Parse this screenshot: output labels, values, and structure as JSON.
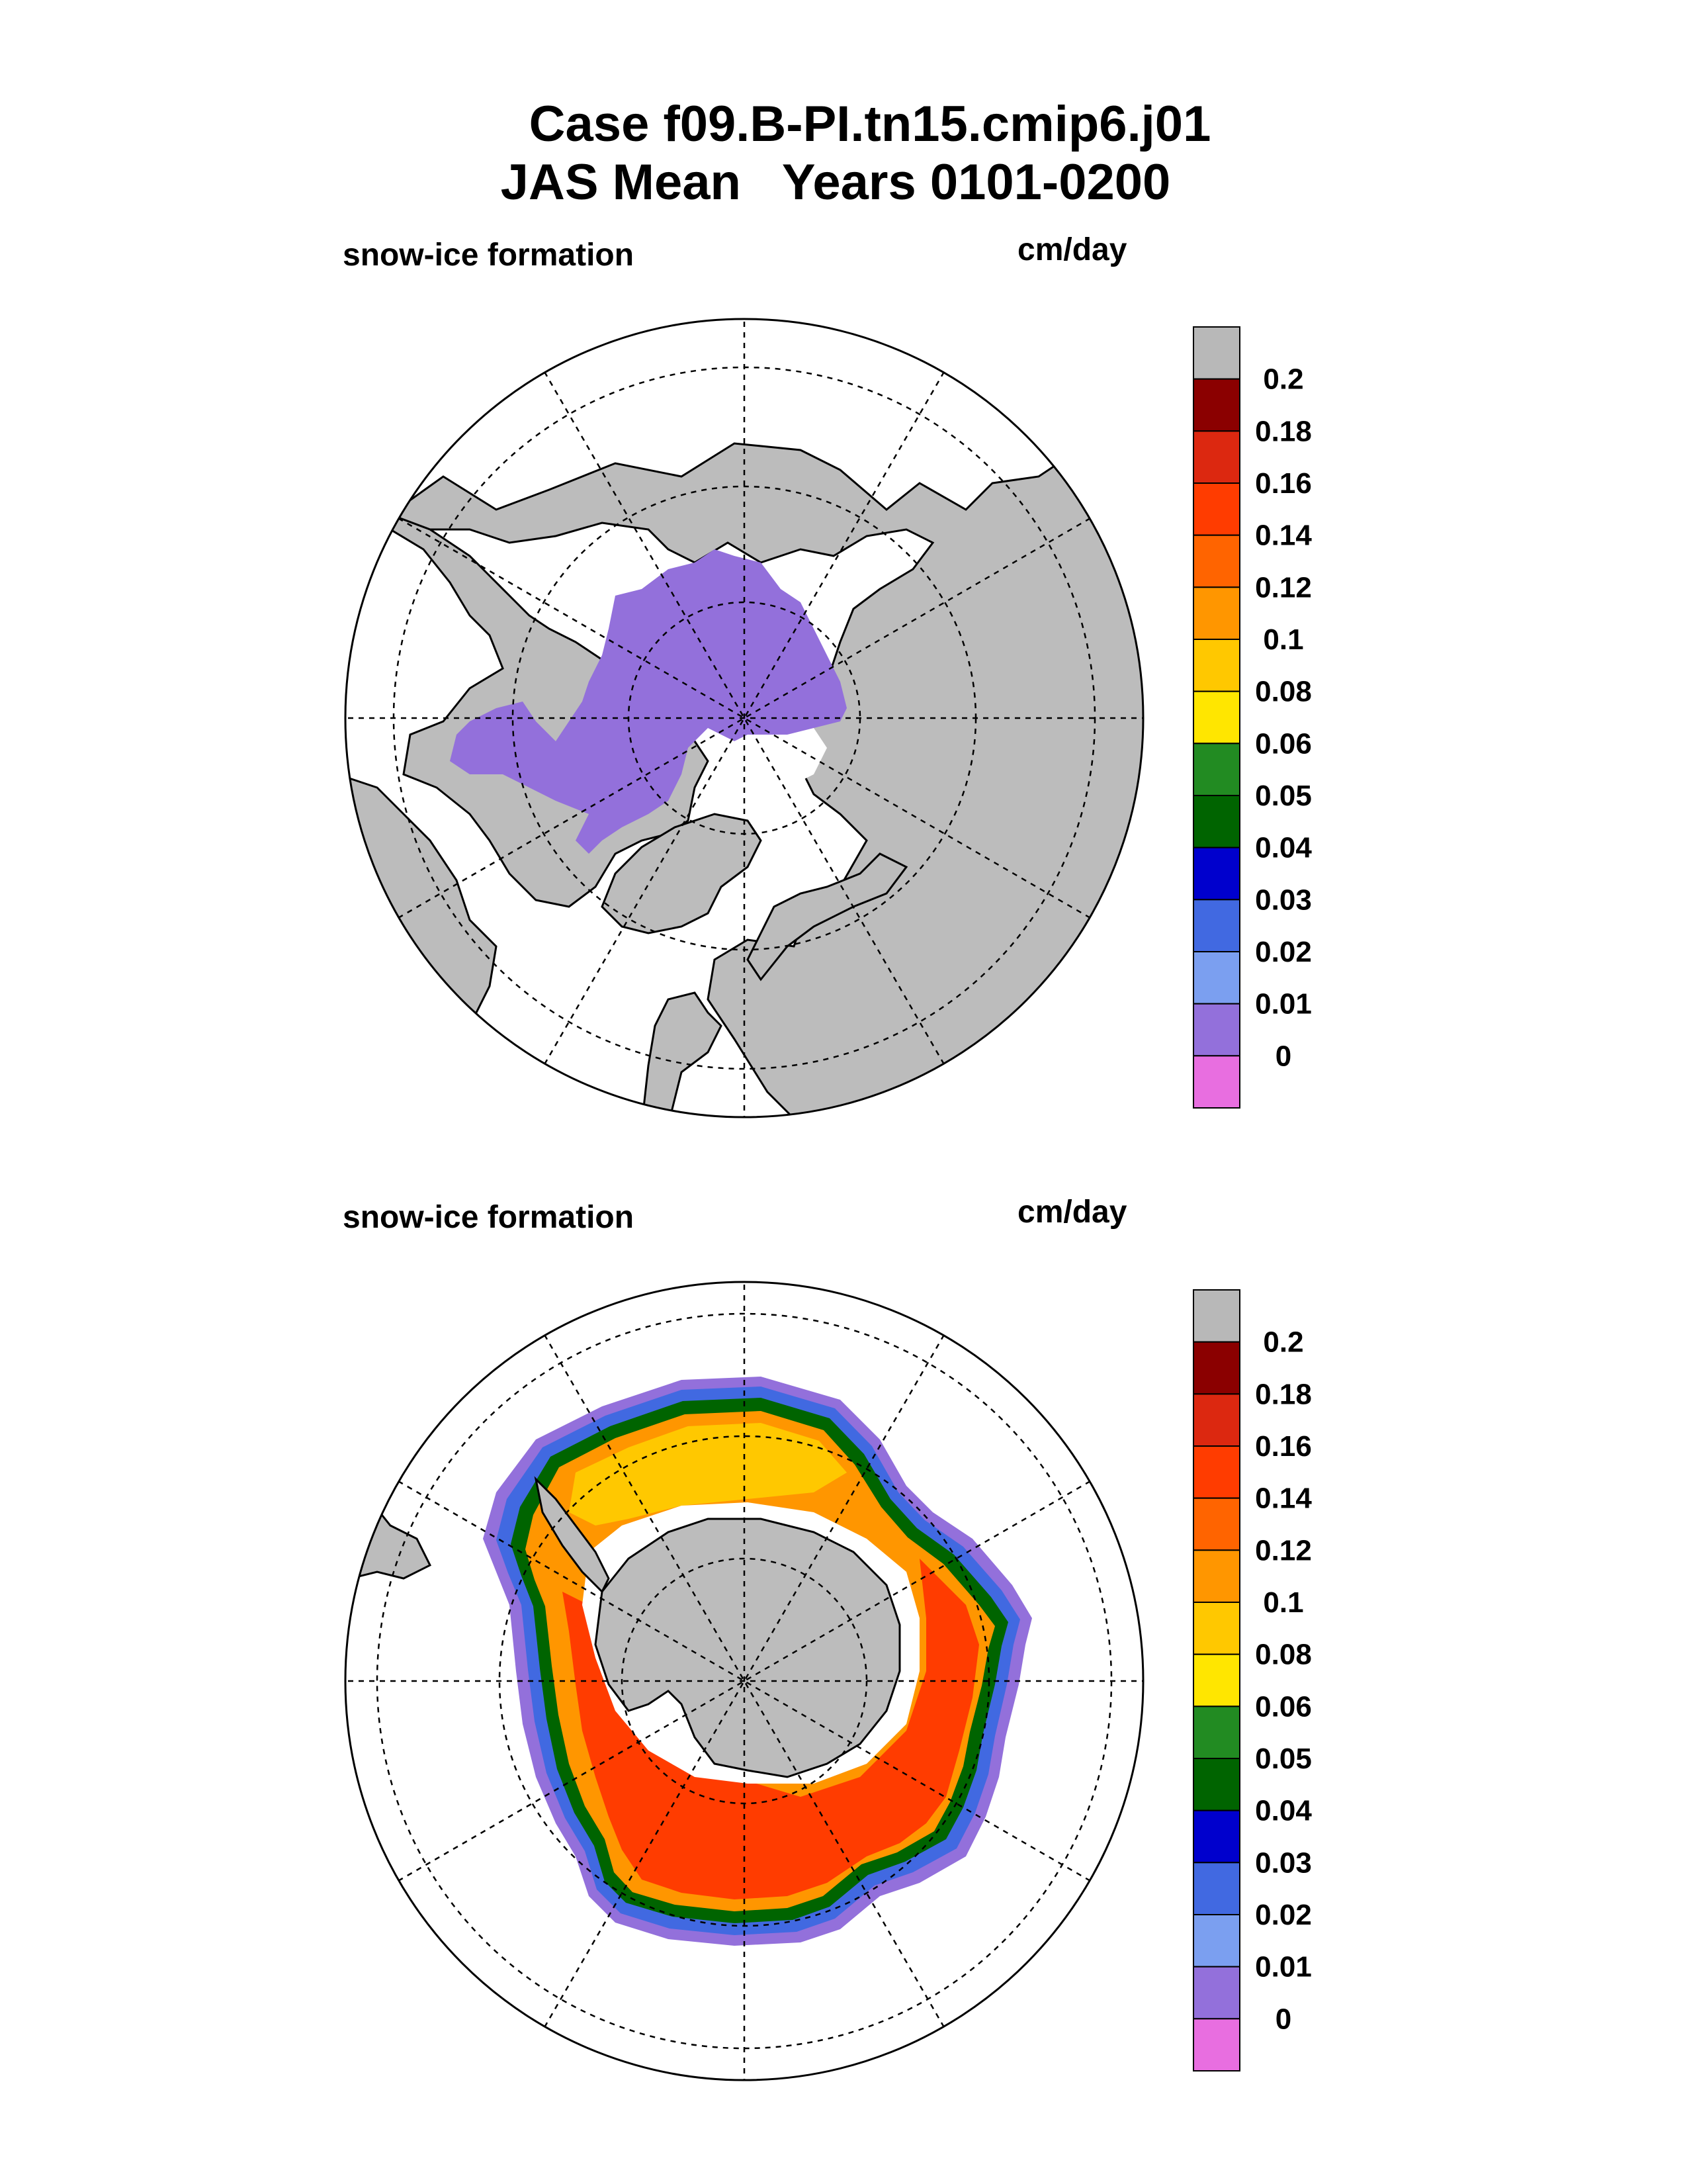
{
  "title": {
    "line1": "Case f09.B-PI.tn15.cmip6.j01",
    "line2": "JAS Mean   Years 0101-0200"
  },
  "chart_data": [
    {
      "type": "heatmap",
      "projection": "polar stereographic",
      "hemisphere": "north",
      "title": "snow-ice formation",
      "units": "cm/day",
      "colorbar": {
        "levels": [
          "0.2",
          "0.18",
          "0.16",
          "0.14",
          "0.12",
          "0.1",
          "0.08",
          "0.06",
          "0.05",
          "0.04",
          "0.03",
          "0.02",
          "0.01",
          "0"
        ],
        "colors": [
          "#b8b8b8",
          "#8b0000",
          "#dc2810",
          "#ff3c00",
          "#ff6400",
          "#ff9600",
          "#ffc800",
          "#ffe600",
          "#228b22",
          "#006400",
          "#0000cd",
          "#4169e1",
          "#7b9ff0",
          "#9370db",
          "#e86ee0"
        ]
      },
      "field_summary": "Sea ice in the central Arctic, Canadian Archipelago and Baffin Bay shows snow-ice formation in the 0-0.01 cm/day class; land masked grey",
      "grid": true
    },
    {
      "type": "heatmap",
      "projection": "polar stereographic",
      "hemisphere": "south",
      "title": "snow-ice formation",
      "units": "cm/day",
      "colorbar": {
        "levels": [
          "0.2",
          "0.18",
          "0.16",
          "0.14",
          "0.12",
          "0.1",
          "0.08",
          "0.06",
          "0.05",
          "0.04",
          "0.03",
          "0.02",
          "0.01",
          "0"
        ],
        "colors": [
          "#b8b8b8",
          "#8b0000",
          "#dc2810",
          "#ff3c00",
          "#ff6400",
          "#ff9600",
          "#ffc800",
          "#ffe600",
          "#228b22",
          "#006400",
          "#0000cd",
          "#4169e1",
          "#7b9ff0",
          "#9370db",
          "#e86ee0"
        ]
      },
      "field_summary": "Ring of snow-ice formation around Antarctica: 0.08-0.18 cm/day in the pack interior, decreasing through 0.06-0.01 cm/day at the ice edge; land masked grey",
      "grid": true
    }
  ]
}
